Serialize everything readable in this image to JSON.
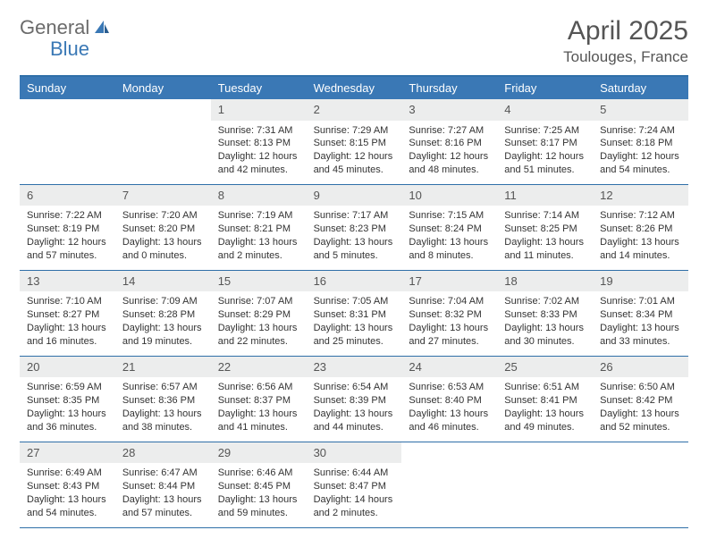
{
  "brand": {
    "text1": "General",
    "text2": "Blue",
    "color_gray": "#6b6b6b",
    "color_blue": "#3a78b5"
  },
  "title": "April 2025",
  "location": "Toulouges, France",
  "header_bg": "#3a78b5",
  "border_color": "#2f6fa8",
  "daynum_bg": "#eceded",
  "weekdays": [
    "Sunday",
    "Monday",
    "Tuesday",
    "Wednesday",
    "Thursday",
    "Friday",
    "Saturday"
  ],
  "weeks": [
    [
      {
        "n": "",
        "t": ""
      },
      {
        "n": "",
        "t": ""
      },
      {
        "n": "1",
        "t": "Sunrise: 7:31 AM\nSunset: 8:13 PM\nDaylight: 12 hours and 42 minutes."
      },
      {
        "n": "2",
        "t": "Sunrise: 7:29 AM\nSunset: 8:15 PM\nDaylight: 12 hours and 45 minutes."
      },
      {
        "n": "3",
        "t": "Sunrise: 7:27 AM\nSunset: 8:16 PM\nDaylight: 12 hours and 48 minutes."
      },
      {
        "n": "4",
        "t": "Sunrise: 7:25 AM\nSunset: 8:17 PM\nDaylight: 12 hours and 51 minutes."
      },
      {
        "n": "5",
        "t": "Sunrise: 7:24 AM\nSunset: 8:18 PM\nDaylight: 12 hours and 54 minutes."
      }
    ],
    [
      {
        "n": "6",
        "t": "Sunrise: 7:22 AM\nSunset: 8:19 PM\nDaylight: 12 hours and 57 minutes."
      },
      {
        "n": "7",
        "t": "Sunrise: 7:20 AM\nSunset: 8:20 PM\nDaylight: 13 hours and 0 minutes."
      },
      {
        "n": "8",
        "t": "Sunrise: 7:19 AM\nSunset: 8:21 PM\nDaylight: 13 hours and 2 minutes."
      },
      {
        "n": "9",
        "t": "Sunrise: 7:17 AM\nSunset: 8:23 PM\nDaylight: 13 hours and 5 minutes."
      },
      {
        "n": "10",
        "t": "Sunrise: 7:15 AM\nSunset: 8:24 PM\nDaylight: 13 hours and 8 minutes."
      },
      {
        "n": "11",
        "t": "Sunrise: 7:14 AM\nSunset: 8:25 PM\nDaylight: 13 hours and 11 minutes."
      },
      {
        "n": "12",
        "t": "Sunrise: 7:12 AM\nSunset: 8:26 PM\nDaylight: 13 hours and 14 minutes."
      }
    ],
    [
      {
        "n": "13",
        "t": "Sunrise: 7:10 AM\nSunset: 8:27 PM\nDaylight: 13 hours and 16 minutes."
      },
      {
        "n": "14",
        "t": "Sunrise: 7:09 AM\nSunset: 8:28 PM\nDaylight: 13 hours and 19 minutes."
      },
      {
        "n": "15",
        "t": "Sunrise: 7:07 AM\nSunset: 8:29 PM\nDaylight: 13 hours and 22 minutes."
      },
      {
        "n": "16",
        "t": "Sunrise: 7:05 AM\nSunset: 8:31 PM\nDaylight: 13 hours and 25 minutes."
      },
      {
        "n": "17",
        "t": "Sunrise: 7:04 AM\nSunset: 8:32 PM\nDaylight: 13 hours and 27 minutes."
      },
      {
        "n": "18",
        "t": "Sunrise: 7:02 AM\nSunset: 8:33 PM\nDaylight: 13 hours and 30 minutes."
      },
      {
        "n": "19",
        "t": "Sunrise: 7:01 AM\nSunset: 8:34 PM\nDaylight: 13 hours and 33 minutes."
      }
    ],
    [
      {
        "n": "20",
        "t": "Sunrise: 6:59 AM\nSunset: 8:35 PM\nDaylight: 13 hours and 36 minutes."
      },
      {
        "n": "21",
        "t": "Sunrise: 6:57 AM\nSunset: 8:36 PM\nDaylight: 13 hours and 38 minutes."
      },
      {
        "n": "22",
        "t": "Sunrise: 6:56 AM\nSunset: 8:37 PM\nDaylight: 13 hours and 41 minutes."
      },
      {
        "n": "23",
        "t": "Sunrise: 6:54 AM\nSunset: 8:39 PM\nDaylight: 13 hours and 44 minutes."
      },
      {
        "n": "24",
        "t": "Sunrise: 6:53 AM\nSunset: 8:40 PM\nDaylight: 13 hours and 46 minutes."
      },
      {
        "n": "25",
        "t": "Sunrise: 6:51 AM\nSunset: 8:41 PM\nDaylight: 13 hours and 49 minutes."
      },
      {
        "n": "26",
        "t": "Sunrise: 6:50 AM\nSunset: 8:42 PM\nDaylight: 13 hours and 52 minutes."
      }
    ],
    [
      {
        "n": "27",
        "t": "Sunrise: 6:49 AM\nSunset: 8:43 PM\nDaylight: 13 hours and 54 minutes."
      },
      {
        "n": "28",
        "t": "Sunrise: 6:47 AM\nSunset: 8:44 PM\nDaylight: 13 hours and 57 minutes."
      },
      {
        "n": "29",
        "t": "Sunrise: 6:46 AM\nSunset: 8:45 PM\nDaylight: 13 hours and 59 minutes."
      },
      {
        "n": "30",
        "t": "Sunrise: 6:44 AM\nSunset: 8:47 PM\nDaylight: 14 hours and 2 minutes."
      },
      {
        "n": "",
        "t": ""
      },
      {
        "n": "",
        "t": ""
      },
      {
        "n": "",
        "t": ""
      }
    ]
  ]
}
